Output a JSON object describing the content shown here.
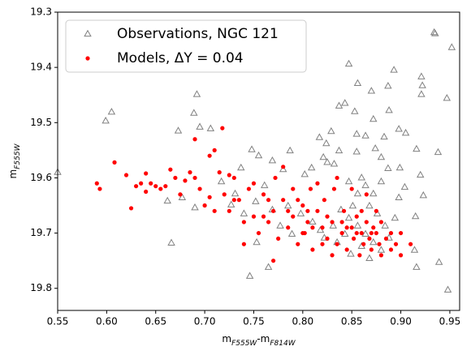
{
  "chart_data": {
    "type": "scatter",
    "xlabel": [
      "m",
      "F555W",
      "-m",
      "F814W"
    ],
    "ylabel": [
      "m",
      "F555W"
    ],
    "xlim": [
      0.55,
      0.96
    ],
    "ylim": [
      19.84,
      19.3
    ],
    "xticks": [
      0.55,
      {
        "value": 0.6,
        "label": "0.60"
      },
      0.65,
      {
        "value": 0.7,
        "label": "0.70"
      },
      0.75,
      {
        "value": 0.8,
        "label": "0.80"
      },
      0.85,
      {
        "value": 0.9,
        "label": "0.90"
      },
      0.95
    ],
    "yticks": [
      19.3,
      19.4,
      19.5,
      19.6,
      19.7,
      19.8
    ],
    "legend": "upper left",
    "series": [
      {
        "name": "Observations, NGC 121",
        "color": "#808080",
        "marker": "open-triangle",
        "x": [
          0.55,
          0.599,
          0.605,
          0.692,
          0.689,
          0.673,
          0.695,
          0.706,
          0.666,
          0.662,
          0.69,
          0.677,
          0.748,
          0.737,
          0.755,
          0.717,
          0.769,
          0.787,
          0.78,
          0.746,
          0.765,
          0.753,
          0.727,
          0.761,
          0.802,
          0.817,
          0.824,
          0.829,
          0.825,
          0.809,
          0.821,
          0.832,
          0.837,
          0.843,
          0.847,
          0.853,
          0.856,
          0.87,
          0.887,
          0.893,
          0.872,
          0.855,
          0.864,
          0.883,
          0.888,
          0.898,
          0.905,
          0.921,
          0.922,
          0.921,
          0.934,
          0.935,
          0.952,
          0.947,
          0.938,
          0.916,
          0.92,
          0.899,
          0.887,
          0.904,
          0.898,
          0.915,
          0.923,
          0.914,
          0.916,
          0.939,
          0.948,
          0.894,
          0.88,
          0.874,
          0.855,
          0.837,
          0.86,
          0.839,
          0.847,
          0.856,
          0.843,
          0.864,
          0.872,
          0.88,
          0.86,
          0.835,
          0.822,
          0.831,
          0.851,
          0.868,
          0.876,
          0.884,
          0.888,
          0.868,
          0.849,
          0.818,
          0.81,
          0.798,
          0.785,
          0.789,
          0.777,
          0.769,
          0.74,
          0.731,
          0.752,
          0.864,
          0.872,
          0.88,
          0.856,
          0.847
        ],
        "values": [
          19.59,
          19.497,
          19.481,
          19.449,
          19.483,
          19.515,
          19.508,
          19.511,
          19.718,
          19.642,
          19.654,
          19.636,
          19.549,
          19.582,
          19.56,
          19.607,
          19.569,
          19.551,
          19.585,
          19.778,
          19.762,
          19.717,
          19.649,
          19.614,
          19.594,
          19.527,
          19.538,
          19.516,
          19.572,
          19.582,
          19.563,
          19.575,
          19.47,
          19.465,
          19.394,
          19.48,
          19.429,
          19.443,
          19.434,
          19.405,
          19.494,
          19.521,
          19.524,
          19.526,
          19.478,
          19.512,
          19.519,
          19.417,
          19.433,
          19.449,
          19.337,
          19.339,
          19.364,
          19.456,
          19.554,
          19.548,
          19.595,
          19.582,
          19.583,
          19.617,
          19.636,
          19.67,
          19.632,
          19.731,
          19.762,
          19.753,
          19.803,
          19.673,
          19.563,
          19.547,
          19.553,
          19.551,
          19.6,
          19.658,
          19.673,
          19.687,
          19.702,
          19.702,
          19.717,
          19.731,
          19.724,
          19.717,
          19.709,
          19.687,
          19.651,
          19.651,
          19.665,
          19.687,
          19.709,
          19.746,
          19.738,
          19.695,
          19.68,
          19.665,
          19.651,
          19.702,
          19.687,
          19.658,
          19.665,
          19.629,
          19.643,
          19.614,
          19.629,
          19.607,
          19.629,
          19.607
        ]
      },
      {
        "name": "Models, ΔY = 0.04",
        "color": "#ff0000",
        "marker": "dot",
        "x": [
          0.59,
          0.593,
          0.608,
          0.62,
          0.625,
          0.63,
          0.635,
          0.64,
          0.64,
          0.645,
          0.65,
          0.655,
          0.66,
          0.665,
          0.67,
          0.675,
          0.68,
          0.685,
          0.69,
          0.695,
          0.7,
          0.705,
          0.71,
          0.715,
          0.718,
          0.72,
          0.725,
          0.73,
          0.735,
          0.74,
          0.745,
          0.75,
          0.755,
          0.76,
          0.765,
          0.77,
          0.772,
          0.775,
          0.78,
          0.785,
          0.79,
          0.795,
          0.8,
          0.802,
          0.805,
          0.808,
          0.81,
          0.815,
          0.82,
          0.822,
          0.825,
          0.83,
          0.832,
          0.835,
          0.84,
          0.842,
          0.845,
          0.85,
          0.852,
          0.855,
          0.858,
          0.86,
          0.862,
          0.865,
          0.868,
          0.87,
          0.872,
          0.875,
          0.878,
          0.88,
          0.885,
          0.89,
          0.895,
          0.9,
          0.91,
          0.795,
          0.78,
          0.76,
          0.74,
          0.77,
          0.815,
          0.835,
          0.85,
          0.865,
          0.79,
          0.805,
          0.825,
          0.845,
          0.86,
          0.82,
          0.83,
          0.81,
          0.75,
          0.73,
          0.71,
          0.69,
          0.705,
          0.725,
          0.765,
          0.785,
          0.8,
          0.84,
          0.87,
          0.88,
          0.855,
          0.875,
          0.89,
          0.9
        ],
        "values": [
          19.61,
          19.62,
          19.572,
          19.595,
          19.655,
          19.615,
          19.61,
          19.592,
          19.625,
          19.61,
          19.615,
          19.62,
          19.615,
          19.585,
          19.6,
          19.63,
          19.605,
          19.59,
          19.53,
          19.62,
          19.65,
          19.56,
          19.55,
          19.59,
          19.51,
          19.63,
          19.66,
          19.6,
          19.64,
          19.68,
          19.62,
          19.67,
          19.7,
          19.63,
          19.68,
          19.66,
          19.6,
          19.71,
          19.64,
          19.69,
          19.67,
          19.72,
          19.65,
          19.7,
          19.68,
          19.62,
          19.73,
          19.66,
          19.69,
          19.64,
          19.71,
          19.68,
          19.62,
          19.72,
          19.7,
          19.66,
          19.73,
          19.69,
          19.71,
          19.67,
          19.74,
          19.7,
          19.72,
          19.68,
          19.71,
          19.73,
          19.69,
          19.7,
          19.72,
          19.68,
          19.71,
          19.73,
          19.72,
          19.7,
          19.72,
          19.64,
          19.58,
          19.67,
          19.72,
          19.75,
          19.61,
          19.6,
          19.62,
          19.63,
          19.62,
          19.66,
          19.67,
          19.69,
          19.66,
          19.72,
          19.74,
          19.69,
          19.61,
          19.64,
          19.66,
          19.6,
          19.635,
          19.595,
          19.64,
          19.66,
          19.7,
          19.68,
          19.7,
          19.74,
          19.7,
          19.66,
          19.7,
          19.74
        ]
      }
    ]
  }
}
